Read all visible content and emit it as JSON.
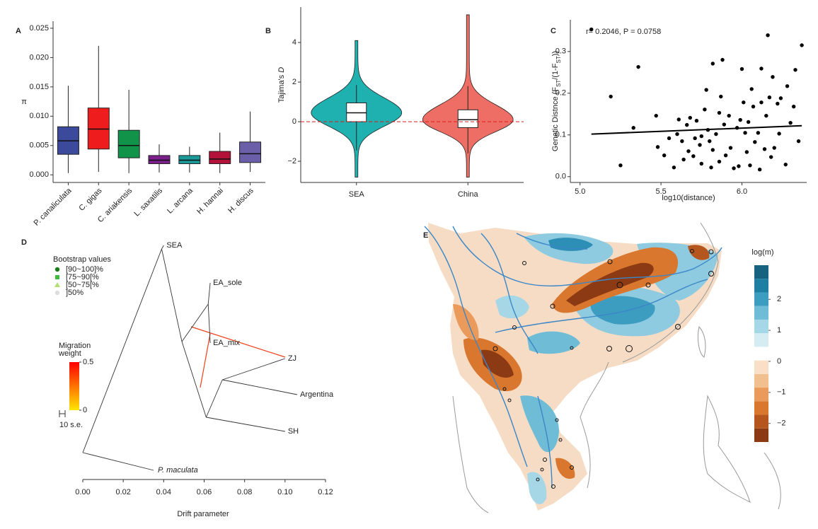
{
  "chart_data": [
    {
      "type": "box",
      "panel_label": "A",
      "y_label": "π",
      "categories": [
        "P. canaliculata",
        "C. gigas",
        "C. ariakensis",
        "L. saxatilis",
        "L. arcana",
        "H. hannai",
        "H. discus"
      ],
      "colors": [
        "#3b4a9a",
        "#ee1c1c",
        "#12934a",
        "#7b1f8a",
        "#1a9a9a",
        "#b5123a",
        "#6a5fa8"
      ],
      "min": [
        0.0003,
        0.0005,
        0.0003,
        0.0004,
        0.0004,
        0.0003,
        0.0005
      ],
      "q1": [
        0.0035,
        0.0044,
        0.0029,
        0.0019,
        0.0019,
        0.0019,
        0.0021
      ],
      "median": [
        0.0058,
        0.0078,
        0.005,
        0.0025,
        0.0025,
        0.0027,
        0.0036
      ],
      "q3": [
        0.0082,
        0.0114,
        0.0076,
        0.0033,
        0.0033,
        0.004,
        0.0056
      ],
      "max": [
        0.0152,
        0.022,
        0.0145,
        0.0052,
        0.0048,
        0.0072,
        0.0108
      ],
      "ylim": [
        -0.0013,
        0.0262
      ],
      "yticks": [
        {
          "value": 0,
          "label": "0.000"
        },
        {
          "value": 0.005,
          "label": "0.005"
        },
        {
          "value": 0.01,
          "label": "0.010"
        },
        {
          "value": 0.015,
          "label": "0.015"
        },
        {
          "value": 0.02,
          "label": "0.020"
        },
        {
          "value": 0.025,
          "label": "0.025"
        }
      ]
    },
    {
      "type": "violin",
      "panel_label": "B",
      "y_label": [
        "Tajima's ",
        "D"
      ],
      "categories": [
        "SEA",
        "China"
      ],
      "colors": [
        "#1fb0b0",
        "#ee6e65"
      ],
      "min": [
        -2.8,
        -2.8
      ],
      "whisker_low": [
        -1.45,
        -1.6
      ],
      "q1": [
        0.0,
        -0.3
      ],
      "median": [
        0.45,
        0.1
      ],
      "q3": [
        0.95,
        0.6
      ],
      "whisker_high": [
        1.85,
        1.8
      ],
      "max": [
        4.1,
        5.4
      ],
      "hline": 0,
      "hline_color": "#e41a1c",
      "ylim": [
        -3.07,
        5.79
      ],
      "yticks": [
        {
          "value": -2,
          "label": "−2"
        },
        0,
        2,
        4
      ]
    },
    {
      "type": "scatter",
      "panel_label": "C",
      "color": "#000000",
      "annotation": "r= 0.2046, P = 0.0758",
      "x_label": "log10(distance)",
      "y_label": [
        "Genetic Distnce (F",
        "ST",
        "/(1-F",
        "ST",
        "))"
      ],
      "x": [
        5.07,
        5.19,
        5.25,
        5.33,
        5.36,
        5.47,
        5.48,
        5.52,
        5.55,
        5.58,
        5.6,
        5.61,
        5.63,
        5.64,
        5.66,
        5.67,
        5.68,
        5.7,
        5.71,
        5.72,
        5.74,
        5.75,
        5.75,
        5.77,
        5.78,
        5.79,
        5.8,
        5.81,
        5.82,
        5.82,
        5.84,
        5.86,
        5.86,
        5.87,
        5.88,
        5.89,
        5.9,
        5.92,
        5.93,
        5.95,
        5.97,
        5.98,
        5.99,
        6.0,
        6.01,
        6.02,
        6.03,
        6.04,
        6.05,
        6.06,
        6.07,
        6.08,
        6.1,
        6.11,
        6.12,
        6.12,
        6.14,
        6.15,
        6.16,
        6.17,
        6.18,
        6.19,
        6.2,
        6.22,
        6.23,
        6.24,
        6.27,
        6.28,
        6.3,
        6.32,
        6.33,
        6.35,
        6.37
      ],
      "values": [
        0.353,
        0.192,
        0.027,
        0.117,
        0.263,
        0.146,
        0.071,
        0.051,
        0.092,
        0.022,
        0.102,
        0.137,
        0.085,
        0.041,
        0.124,
        0.061,
        0.141,
        0.049,
        0.092,
        0.134,
        0.076,
        0.097,
        0.031,
        0.161,
        0.208,
        0.112,
        0.085,
        0.022,
        0.271,
        0.064,
        0.102,
        0.153,
        0.036,
        0.192,
        0.28,
        0.125,
        0.051,
        0.146,
        0.069,
        0.02,
        0.117,
        0.025,
        0.136,
        0.258,
        0.178,
        0.105,
        0.059,
        0.131,
        0.027,
        0.21,
        0.168,
        0.083,
        0.105,
        0.017,
        0.178,
        0.259,
        0.066,
        0.146,
        0.339,
        0.19,
        0.047,
        0.239,
        0.069,
        0.175,
        0.103,
        0.188,
        0.029,
        0.217,
        0.129,
        0.168,
        0.256,
        0.085,
        0.315
      ],
      "fit": {
        "x": [
          5.07,
          6.37
        ],
        "values": [
          0.102,
          0.122
        ]
      },
      "xlim": [
        4.94,
        6.4
      ],
      "xticks": [
        {
          "value": 5,
          "label": "5.0"
        },
        {
          "value": 5.5,
          "label": "5.5"
        },
        {
          "value": 6,
          "label": "6.0"
        }
      ],
      "ylim": [
        -0.014,
        0.376
      ],
      "yticks": [
        {
          "value": 0,
          "label": "0.0"
        },
        0.1,
        0.2,
        0.3
      ]
    },
    {
      "type": "tree",
      "panel_label": "D",
      "x_label": "Drift parameter",
      "nodes": [
        {
          "x": 0
        },
        {
          "x": 0.039,
          "parent": 0
        },
        {
          "x": 0.04,
          "parent": 1,
          "label": "SEA",
          "color": "#2ee6f0"
        },
        {
          "x": 0.035,
          "parent": 0,
          "label": "P. maculata",
          "color": "#000000"
        },
        {
          "x": 0.049,
          "parent": 1
        },
        {
          "x": 0.062,
          "parent": 4
        },
        {
          "x": 0.063,
          "parent": 5,
          "label": "EA_sole",
          "color": "#e8242a"
        },
        {
          "x": 0.063,
          "parent": 5,
          "label": "EA_mix",
          "color": "#e8242a"
        },
        {
          "x": 0.061,
          "parent": 4
        },
        {
          "x": 0.069,
          "parent": 8
        },
        {
          "x": 0.1,
          "parent": 9,
          "label": "ZJ",
          "color": "#e8242a"
        },
        {
          "x": 0.106,
          "parent": 9,
          "label": "Argentina",
          "color": "#2a7d2a"
        },
        {
          "x": 0.1,
          "parent": 8,
          "label": "SH",
          "color": "#e8242a"
        }
      ],
      "xlim": [
        0,
        0.12
      ],
      "xticks": [
        {
          "value": 0,
          "label": "0.00"
        },
        {
          "value": 0.02,
          "label": "0.02"
        },
        {
          "value": 0.04,
          "label": "0.04"
        },
        {
          "value": 0.06,
          "label": "0.06"
        },
        {
          "value": 0.08,
          "label": "0.08"
        },
        {
          "value": 0.1,
          "label": "0.10"
        },
        {
          "value": 0.12,
          "label": "0.12"
        }
      ],
      "bootstrap_legend": {
        "title": "Bootstrap values",
        "entries": [
          {
            "label": "[90~100]%",
            "color": "#1a7a1a",
            "shape": "circle"
          },
          {
            "label": "[75~90[%",
            "color": "#3dbb3d",
            "shape": "square"
          },
          {
            "label": "[50~75[%",
            "color": "#b0e070",
            "shape": "triangle"
          },
          {
            "label": "]50%",
            "color": "#dddddd",
            "shape": "circle"
          }
        ]
      },
      "migration_scale": {
        "title": [
          "Migration",
          "weight"
        ],
        "lim": [
          0,
          0.5
        ],
        "ticks": [
          0,
          0.5
        ],
        "colors": [
          "#ffe600",
          "#ff0000"
        ]
      },
      "scale_bar": "10 s.e."
    },
    {
      "type": "map",
      "panel_label": "E",
      "colorbar": {
        "title": "log(m)",
        "lim": [
          -2.6,
          3.1
        ],
        "ticks": [
          2,
          1,
          0,
          {
            "value": -1,
            "label": "−1"
          },
          {
            "value": -2,
            "label": "−2"
          }
        ],
        "colors": [
          "#8c3a14",
          "#b5561e",
          "#d9772f",
          "#ea9a5a",
          "#f2bf8f",
          "#f8dfc6",
          "#ffffff",
          "#d4ecf2",
          "#a6d7e6",
          "#6fbcd6",
          "#3d9dc0",
          "#1f7fa3",
          "#17627f"
        ]
      }
    }
  ]
}
